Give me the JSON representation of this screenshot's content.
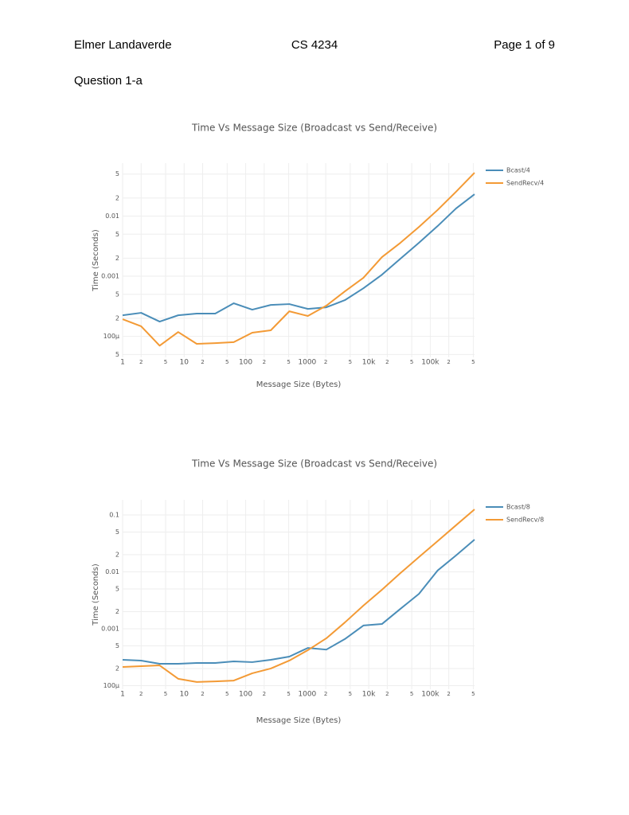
{
  "header": {
    "left": "Elmer Landaverde",
    "center": "CS 4234",
    "right": "Page 1 of 9"
  },
  "section": "Question 1-a",
  "chart_data": [
    {
      "type": "line",
      "title": "Time Vs Message Size (Broadcast vs Send/Receive)",
      "x_label": "Message Size (Bytes)",
      "y_label": "Time (Seconds)",
      "xscale": "log",
      "yscale": "log",
      "grid": true,
      "x": [
        1,
        2,
        4,
        8,
        16,
        32,
        64,
        128,
        256,
        512,
        1024,
        2048,
        4096,
        8192,
        16384,
        32768,
        65536,
        131072,
        262144,
        524288
      ],
      "series": [
        {
          "name": "Bcast/4",
          "color": "#4a8db8",
          "values": [
            0.000224,
            0.000246,
            0.000176,
            0.000224,
            0.000239,
            0.000239,
            0.000355,
            0.000278,
            0.000333,
            0.000344,
            0.000286,
            0.000304,
            0.0004,
            0.00063,
            0.00106,
            0.00196,
            0.0036,
            0.0068,
            0.0134,
            0.0231
          ]
        },
        {
          "name": "SendRecv/4",
          "color": "#f39a35",
          "values": [
            0.000193,
            0.000147,
            7e-05,
            0.000118,
            7.5e-05,
            7.7e-05,
            8e-05,
            0.000115,
            0.000126,
            0.000261,
            0.000218,
            0.000324,
            0.00056,
            0.00094,
            0.00208,
            0.0036,
            0.0066,
            0.0126,
            0.0254,
            0.0527
          ]
        }
      ],
      "xlim": [
        1,
        524288
      ],
      "ylim": [
        4.47e-05,
        0.076
      ],
      "xticks": [
        1,
        2,
        5,
        10,
        {
          "value": 20,
          "label": "2"
        },
        {
          "value": 50,
          "label": "5"
        },
        100,
        {
          "value": 200,
          "label": "2"
        },
        {
          "value": 500,
          "label": "5"
        },
        1000,
        {
          "value": 2000,
          "label": "2"
        },
        {
          "value": 5000,
          "label": "5"
        },
        {
          "value": 10000,
          "label": "10k"
        },
        {
          "value": 20000,
          "label": "2"
        },
        {
          "value": 50000,
          "label": "5"
        },
        {
          "value": 100000,
          "label": "100k"
        },
        {
          "value": 200000,
          "label": "2"
        },
        {
          "value": 500000,
          "label": "5"
        }
      ],
      "yticks": [
        {
          "value": 5e-05,
          "label": "5"
        },
        {
          "value": 0.0001,
          "label": "100μ"
        },
        {
          "value": 0.0002,
          "label": "2"
        },
        {
          "value": 0.0005,
          "label": "5"
        },
        0.001,
        {
          "value": 0.002,
          "label": "2"
        },
        {
          "value": 0.005,
          "label": "5"
        },
        0.01,
        {
          "value": 0.02,
          "label": "2"
        },
        {
          "value": 0.05,
          "label": "5"
        }
      ]
    },
    {
      "type": "line",
      "title": "Time Vs Message Size (Broadcast vs Send/Receive)",
      "x_label": "Message Size (Bytes)",
      "y_label": "Time (Seconds)",
      "xscale": "log",
      "yscale": "log",
      "grid": true,
      "x": [
        1,
        2,
        4,
        8,
        16,
        32,
        64,
        128,
        256,
        512,
        1024,
        2048,
        4096,
        8192,
        16384,
        32768,
        65536,
        131072,
        262144,
        524288
      ],
      "series": [
        {
          "name": "Bcast/8",
          "color": "#4a8db8",
          "values": [
            0.000285,
            0.000276,
            0.000242,
            0.000242,
            0.00025,
            0.00025,
            0.000267,
            0.000259,
            0.000285,
            0.000324,
            0.00046,
            0.00043,
            0.00066,
            0.00114,
            0.00121,
            0.00224,
            0.0041,
            0.0105,
            0.0194,
            0.0368
          ]
        },
        {
          "name": "SendRecv/8",
          "color": "#f39a35",
          "values": [
            0.000213,
            0.00022,
            0.000227,
            0.000132,
            0.000116,
            0.000119,
            0.000123,
            0.000165,
            0.0002,
            0.000276,
            0.00042,
            0.00068,
            0.00129,
            0.00255,
            0.00484,
            0.0095,
            0.0182,
            0.0345,
            0.0658,
            0.125
          ]
        }
      ],
      "xlim": [
        1,
        524288
      ],
      "ylim": [
        8.65e-05,
        0.184
      ],
      "xticks": [
        1,
        2,
        5,
        10,
        {
          "value": 20,
          "label": "2"
        },
        {
          "value": 50,
          "label": "5"
        },
        100,
        {
          "value": 200,
          "label": "2"
        },
        {
          "value": 500,
          "label": "5"
        },
        1000,
        {
          "value": 2000,
          "label": "2"
        },
        {
          "value": 5000,
          "label": "5"
        },
        {
          "value": 10000,
          "label": "10k"
        },
        {
          "value": 20000,
          "label": "2"
        },
        {
          "value": 50000,
          "label": "5"
        },
        {
          "value": 100000,
          "label": "100k"
        },
        {
          "value": 200000,
          "label": "2"
        },
        {
          "value": 500000,
          "label": "5"
        }
      ],
      "yticks": [
        {
          "value": 0.0001,
          "label": "100μ"
        },
        {
          "value": 0.0002,
          "label": "2"
        },
        {
          "value": 0.0005,
          "label": "5"
        },
        0.001,
        {
          "value": 0.002,
          "label": "2"
        },
        {
          "value": 0.005,
          "label": "5"
        },
        0.01,
        {
          "value": 0.02,
          "label": "2"
        },
        {
          "value": 0.05,
          "label": "5"
        },
        0.1
      ]
    }
  ]
}
